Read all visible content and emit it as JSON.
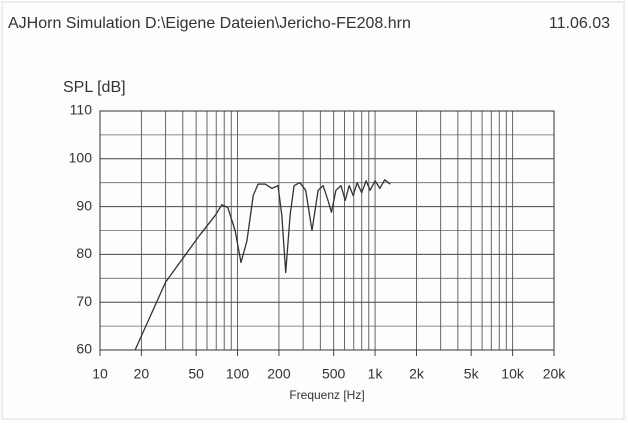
{
  "chart_data": {
    "type": "line",
    "title": "AJHorn Simulation D:\\Eigene Dateien\\Jericho-FE208.hrn",
    "date": "11.06.03",
    "y_label": "SPL [dB]",
    "x_label": "Frequenz [Hz]",
    "x_scale": "log",
    "xlim": [
      10,
      20000
    ],
    "ylim": [
      60,
      110
    ],
    "xticks": [
      10,
      20,
      50,
      100,
      200,
      500,
      {
        "value": 1000,
        "label": "1k"
      },
      {
        "value": 2000,
        "label": "2k"
      },
      {
        "value": 5000,
        "label": "5k"
      },
      {
        "value": 10000,
        "label": "10k"
      },
      {
        "value": 20000,
        "label": "20k"
      }
    ],
    "yticks": [
      60,
      70,
      80,
      90,
      100,
      110
    ],
    "y_minor_grid": [
      65,
      75,
      85,
      95,
      105
    ],
    "grid": true,
    "series": [
      {
        "color": "#333333",
        "x": [
          18,
          30,
          53,
          69,
          77,
          85,
          96,
          106,
          117,
          130,
          141,
          159,
          178,
          197,
          210,
          224,
          241,
          258,
          284,
          313,
          348,
          385,
          419,
          455,
          482,
          519,
          565,
          607,
          649,
          693,
          740,
          800,
          861,
          920,
          1000,
          1082,
          1175,
          1290
        ],
        "values": [
          60,
          74.2,
          84,
          88.2,
          90.4,
          89.8,
          85,
          78.3,
          82.8,
          92.3,
          94.7,
          94.7,
          93.8,
          94.4,
          88.2,
          76.2,
          88.2,
          94.4,
          95,
          93.4,
          85,
          93.4,
          94.4,
          91.3,
          88.8,
          93.4,
          94.4,
          91.3,
          94.4,
          92.3,
          95,
          92.9,
          95.4,
          93.4,
          95.4,
          93.8,
          95.6,
          94.7
        ]
      }
    ]
  }
}
